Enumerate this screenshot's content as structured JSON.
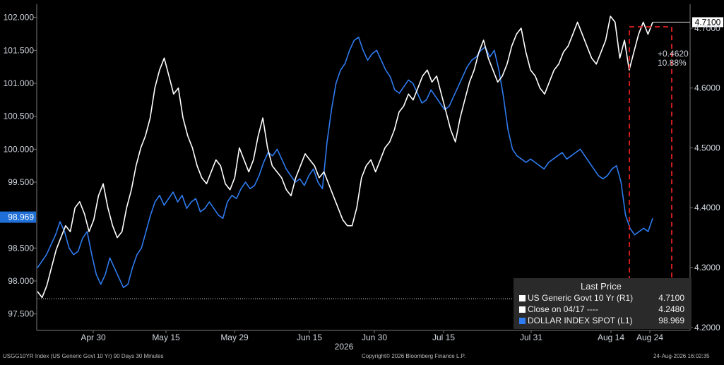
{
  "colors": {
    "background": "#000000",
    "usgg": "#ffffff",
    "dxy": "#2f7bf0",
    "highlight": "#e02020",
    "left_tag": "#1f6fd6"
  },
  "chart_data": {
    "type": "line",
    "year_label": "2026",
    "x_ticks": [
      "Apr 30",
      "May 15",
      "May 29",
      "Jun 15",
      "Jun 30",
      "Jul 15",
      "Jul 31",
      "Aug 14",
      "Aug 24"
    ],
    "left_axis": {
      "ticks": [
        "102.000",
        "101.500",
        "101.000",
        "100.500",
        "100.000",
        "99.500",
        "98.500",
        "98.000",
        "97.500"
      ],
      "range": [
        97.25,
        102.2
      ]
    },
    "right_axis": {
      "ticks": [
        "4.7000",
        "4.6000",
        "4.5000",
        "4.4000",
        "4.3000",
        "4.2000"
      ],
      "range": [
        4.195,
        4.74
      ]
    },
    "series": [
      {
        "name": "US Generic Govt 10 Yr",
        "axis": "right",
        "values": [
          4.26,
          4.25,
          4.27,
          4.3,
          4.33,
          4.35,
          4.37,
          4.36,
          4.4,
          4.41,
          4.39,
          4.36,
          4.38,
          4.42,
          4.44,
          4.4,
          4.37,
          4.35,
          4.36,
          4.4,
          4.43,
          4.47,
          4.5,
          4.52,
          4.55,
          4.6,
          4.63,
          4.65,
          4.62,
          4.59,
          4.6,
          4.55,
          4.52,
          4.5,
          4.47,
          4.45,
          4.44,
          4.46,
          4.48,
          4.47,
          4.44,
          4.43,
          4.45,
          4.5,
          4.48,
          4.46,
          4.48,
          4.52,
          4.55,
          4.5,
          4.47,
          4.46,
          4.45,
          4.43,
          4.42,
          4.45,
          4.47,
          4.49,
          4.48,
          4.47,
          4.45,
          4.46,
          4.44,
          4.42,
          4.4,
          4.38,
          4.37,
          4.37,
          4.4,
          4.45,
          4.47,
          4.48,
          4.46,
          4.48,
          4.5,
          4.51,
          4.53,
          4.56,
          4.57,
          4.59,
          4.58,
          4.6,
          4.62,
          4.63,
          4.61,
          4.62,
          4.59,
          4.56,
          4.53,
          4.51,
          4.55,
          4.58,
          4.61,
          4.63,
          4.66,
          4.68,
          4.65,
          4.63,
          4.61,
          4.62,
          4.64,
          4.67,
          4.69,
          4.7,
          4.66,
          4.63,
          4.62,
          4.6,
          4.59,
          4.61,
          4.63,
          4.64,
          4.66,
          4.67,
          4.69,
          4.71,
          4.69,
          4.67,
          4.65,
          4.64,
          4.66,
          4.68,
          4.72,
          4.71,
          4.65,
          4.68,
          4.63,
          4.66,
          4.69,
          4.71,
          4.69,
          4.71
        ]
      },
      {
        "name": "DOLLAR INDEX SPOT",
        "axis": "left",
        "values": [
          98.2,
          98.3,
          98.4,
          98.55,
          98.7,
          98.9,
          98.75,
          98.5,
          98.4,
          98.45,
          98.65,
          98.75,
          98.4,
          98.1,
          97.95,
          98.1,
          98.35,
          98.2,
          98.05,
          97.9,
          97.95,
          98.2,
          98.4,
          98.5,
          98.75,
          99.0,
          99.2,
          99.3,
          99.15,
          99.25,
          99.35,
          99.2,
          99.3,
          99.1,
          99.2,
          99.25,
          99.05,
          99.1,
          99.2,
          99.1,
          99.0,
          98.95,
          99.2,
          99.3,
          99.25,
          99.4,
          99.5,
          99.4,
          99.45,
          99.6,
          99.8,
          99.95,
          99.9,
          100.0,
          99.85,
          99.7,
          99.6,
          99.5,
          99.55,
          99.45,
          99.6,
          99.7,
          99.5,
          99.4,
          100.1,
          100.6,
          101.0,
          101.2,
          101.3,
          101.5,
          101.65,
          101.7,
          101.5,
          101.35,
          101.45,
          101.5,
          101.35,
          101.2,
          101.1,
          100.9,
          100.85,
          100.95,
          101.05,
          101.0,
          100.85,
          100.7,
          100.75,
          100.9,
          100.8,
          100.7,
          100.6,
          100.65,
          100.8,
          100.95,
          101.1,
          101.25,
          101.35,
          101.4,
          101.5,
          101.55,
          101.4,
          101.5,
          101.2,
          100.8,
          100.3,
          100.0,
          99.9,
          99.85,
          99.8,
          99.85,
          99.8,
          99.75,
          99.7,
          99.8,
          99.85,
          99.9,
          99.95,
          99.85,
          99.9,
          99.95,
          100.0,
          99.9,
          99.8,
          99.7,
          99.6,
          99.55,
          99.6,
          99.7,
          99.75,
          99.5,
          99.0,
          98.8,
          98.7,
          98.75,
          98.8,
          98.75,
          98.95
        ]
      }
    ],
    "reference_line": {
      "name": "Close on 04/17",
      "value": 4.248,
      "axis": "right"
    },
    "annotation": {
      "change": "+0.4620",
      "pct": "10.88%",
      "last": "4.7100"
    },
    "left_last_value": "98.969"
  },
  "legend": {
    "header": "Last Price",
    "rows": [
      {
        "label": "US Generic Govt 10 Yr  (R1)",
        "value": "4.7100",
        "swatch": "#ffffff"
      },
      {
        "label": "Close on 04/17  ----",
        "value": "4.2480",
        "swatch": "#ffffff"
      },
      {
        "label": "DOLLAR INDEX SPOT  (L1)",
        "value": "98.969",
        "swatch": "#2f7bf0"
      }
    ]
  },
  "footer": {
    "left": "USGG10YR Index (US Generic Govt 10 Yr) 90 Days 30 Minutes",
    "center": "Copyright© 2026 Bloomberg Finance L.P.",
    "right": "24-Aug-2026 16:02:35"
  }
}
